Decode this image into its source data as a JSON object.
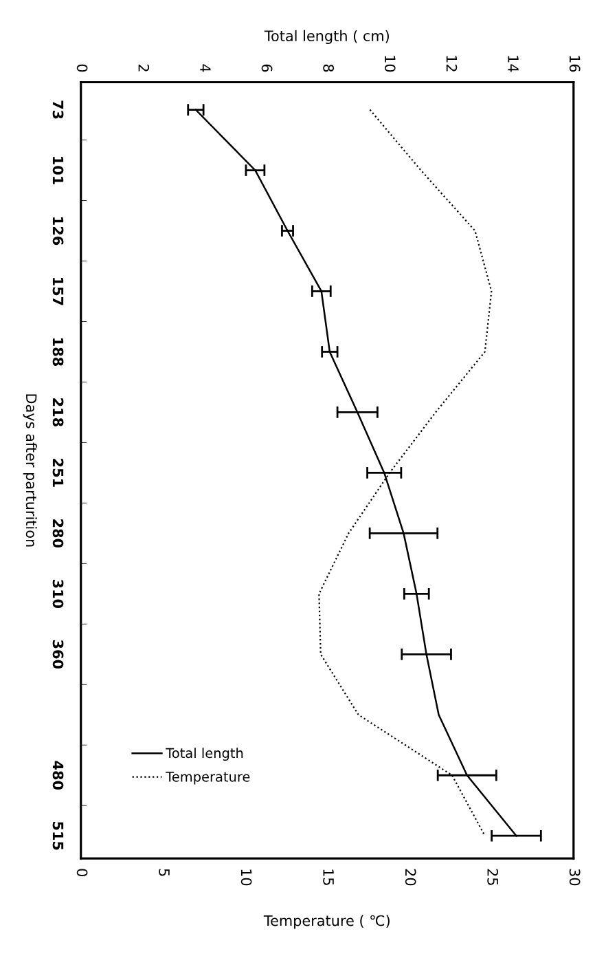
{
  "chart_data": {
    "type": "line",
    "orientation": "horizontal",
    "ylabel": "Days after parturition",
    "x2label": "Total length ( cm)",
    "xlabel": "Temperature ( ℃)",
    "categories": [
      "73",
      "101",
      "126",
      "157",
      "188",
      "218",
      "251",
      "280",
      "310",
      "360",
      null,
      "480",
      "515"
    ],
    "x2lim": [
      0,
      16
    ],
    "x2ticks": [
      0,
      2,
      4,
      6,
      8,
      10,
      12,
      14,
      16
    ],
    "xlim": [
      0,
      30
    ],
    "xticks": [
      0,
      5,
      10,
      15,
      20,
      25,
      30
    ],
    "grid": false,
    "legend": "bottom left",
    "marker": "none",
    "series": [
      {
        "name": "Total length",
        "color": "#000000",
        "line_style": "solid",
        "axis": "x2",
        "values": [
          3.73,
          5.66,
          6.71,
          7.81,
          8.08,
          8.98,
          9.85,
          10.48,
          10.9,
          11.22,
          11.62,
          12.54,
          14.14
        ],
        "errors": [
          0.25,
          0.3,
          0.18,
          0.3,
          0.25,
          0.65,
          0.55,
          1.1,
          0.4,
          0.8,
          null,
          0.95,
          0.8
        ]
      },
      {
        "name": "Temperature",
        "color": "#000000",
        "line_style": "dotted",
        "values": [
          17.6,
          20.7,
          24.0,
          25.0,
          24.6,
          21.6,
          18.8,
          16.3,
          14.5,
          14.6,
          16.9,
          22.6,
          24.6
        ]
      }
    ]
  }
}
